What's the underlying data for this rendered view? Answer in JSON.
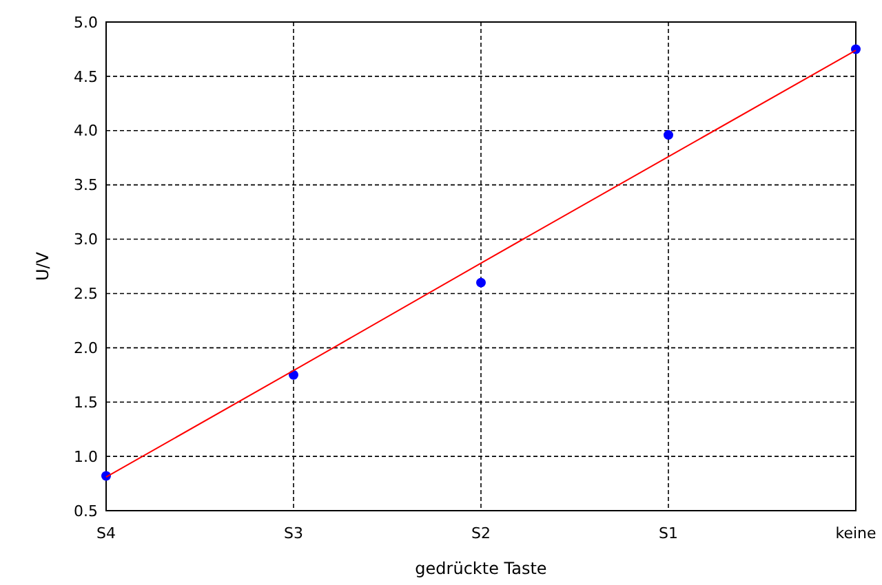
{
  "chart_data": {
    "type": "scatter",
    "xlabel": "gedrückte Taste",
    "ylabel": "U/V",
    "categories": [
      "S4",
      "S3",
      "S2",
      "S1",
      "keine"
    ],
    "series": [
      {
        "color": "#0000ff",
        "marker": "circle",
        "values": [
          0.82,
          1.75,
          2.6,
          3.96,
          4.75
        ]
      },
      {
        "type": "line",
        "color": "#ff0000",
        "marker": "none",
        "line_style": "solid",
        "values": [
          0.81,
          1.79,
          2.78,
          3.76,
          4.74
        ]
      }
    ],
    "ylim": [
      0.5,
      5.0
    ],
    "yticks": [
      {
        "value": 0.5,
        "label": "0.5"
      },
      {
        "value": 1,
        "label": "1.0"
      },
      {
        "value": 1.5,
        "label": "1.5"
      },
      {
        "value": 2,
        "label": "2.0"
      },
      {
        "value": 2.5,
        "label": "2.5"
      },
      {
        "value": 3,
        "label": "3.0"
      },
      {
        "value": 3.5,
        "label": "3.5"
      },
      {
        "value": 4,
        "label": "4.0"
      },
      {
        "value": 4.5,
        "label": "4.5"
      },
      {
        "value": 5,
        "label": "5.0"
      }
    ],
    "grid": true
  }
}
